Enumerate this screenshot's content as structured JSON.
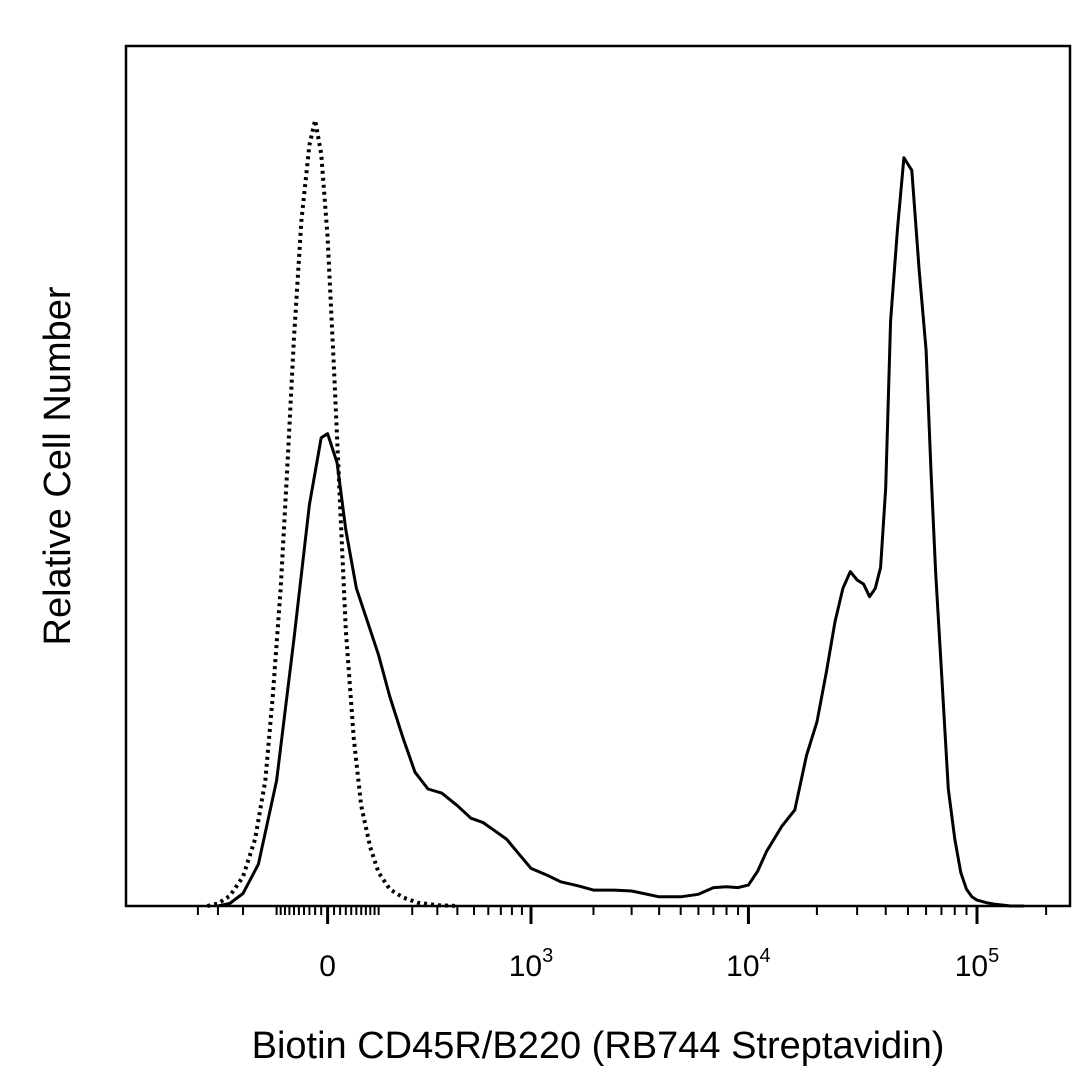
{
  "chart_data": {
    "type": "line",
    "title": "",
    "xlabel": "Biotin CD45R/B220 (RB744 Streptavidin)",
    "ylabel": "Relative Cell Number",
    "x_scale": "biexponential",
    "xlim": [
      -400,
      250000
    ],
    "ylim": [
      0,
      100
    ],
    "grid": false,
    "legend": "none",
    "x_ticks": [
      {
        "value": 0,
        "base": "0",
        "exp": ""
      },
      {
        "value": 1000,
        "base": "10",
        "exp": "3"
      },
      {
        "value": 10000,
        "base": "10",
        "exp": "4"
      },
      {
        "value": 100000,
        "base": "10",
        "exp": "5"
      }
    ],
    "series": [
      {
        "style": "solid",
        "color": "#000000",
        "x": [
          -300,
          -250,
          -200,
          -150,
          -100,
          -60,
          -30,
          -10,
          0,
          15,
          30,
          50,
          80,
          100,
          130,
          170,
          210,
          260,
          320,
          400,
          480,
          560,
          650,
          750,
          850,
          1000,
          1200,
          1400,
          1700,
          2000,
          2500,
          3000,
          4000,
          5000,
          6000,
          7000,
          8000,
          9000,
          10000,
          11000,
          12000,
          14000,
          16000,
          18000,
          20000,
          22000,
          24000,
          26000,
          28000,
          30000,
          32000,
          34000,
          36000,
          38000,
          40000,
          42000,
          45000,
          48000,
          52000,
          56000,
          60000,
          63000,
          66000,
          70000,
          75000,
          80000,
          85000,
          90000,
          95000,
          100000,
          110000,
          120000,
          140000,
          160000
        ],
        "y": [
          0,
          0.3,
          1.5,
          5,
          15,
          32,
          48,
          56,
          56.5,
          53,
          45,
          38,
          33,
          30,
          25,
          20,
          16,
          14,
          13.5,
          12,
          10.5,
          10,
          9,
          8,
          6.5,
          4.5,
          3.7,
          2.9,
          2.4,
          1.9,
          1.9,
          1.8,
          1.1,
          1.1,
          1.4,
          2.2,
          2.3,
          2.2,
          2.5,
          4.2,
          6.5,
          9.5,
          11.5,
          18,
          22,
          28,
          34,
          38,
          40,
          39,
          38.5,
          37,
          38,
          40.5,
          50,
          70,
          81,
          89.5,
          88,
          76,
          66.5,
          52,
          40,
          28,
          14,
          8,
          4,
          2,
          1.1,
          0.7,
          0.4,
          0.2,
          0,
          0
        ]
      },
      {
        "style": "dotted",
        "color": "#000000",
        "x": [
          -350,
          -300,
          -250,
          -200,
          -160,
          -130,
          -110,
          -90,
          -75,
          -60,
          -45,
          -30,
          -20,
          -10,
          0,
          10,
          20,
          30,
          45,
          60,
          80,
          100,
          130,
          170,
          220,
          300,
          400
        ],
        "y": [
          0,
          0.3,
          1.2,
          3.5,
          8,
          15,
          25,
          38,
          52,
          68,
          82,
          91,
          94,
          90,
          80,
          64,
          48,
          33,
          20,
          12,
          7,
          4,
          2,
          1,
          0.4,
          0.1,
          0
        ]
      }
    ]
  }
}
